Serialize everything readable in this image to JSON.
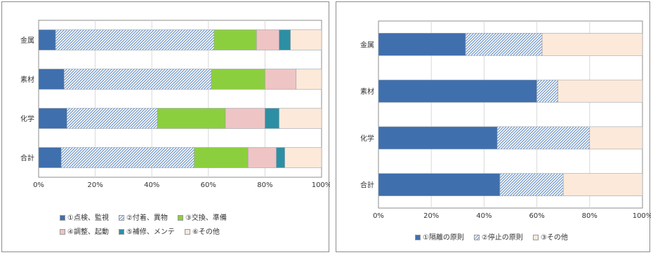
{
  "colors": {
    "blue": "#3f6fad",
    "hatch": "#b7c9e2",
    "green": "#8ccf3e",
    "pink": "#efc4c4",
    "teal": "#2d8fa3",
    "cream": "#fde9d9",
    "grid": "#d9d9d9",
    "plot_border": "#8c8c8c"
  },
  "chart_data": [
    {
      "type": "bar",
      "orientation": "horizontal",
      "stacked": true,
      "categories": [
        "金属",
        "素材",
        "化学",
        "合計"
      ],
      "series": [
        {
          "name": "①点検、監視",
          "color": "blue",
          "values": [
            6,
            9,
            10,
            8
          ]
        },
        {
          "name": "②付着、異物",
          "color": "hatch",
          "values": [
            56,
            52,
            32,
            47
          ]
        },
        {
          "name": "③交換、準備",
          "color": "green",
          "values": [
            15,
            19,
            24,
            19
          ]
        },
        {
          "name": "④調整、起動",
          "color": "pink",
          "values": [
            8,
            11,
            14,
            10
          ]
        },
        {
          "name": "⑤補修、メンテ",
          "color": "teal",
          "values": [
            4,
            0,
            5,
            3
          ]
        },
        {
          "name": "⑥その他",
          "color": "cream",
          "values": [
            11,
            9,
            15,
            13
          ]
        }
      ],
      "xlim": [
        0,
        100
      ],
      "xticks": [
        "0%",
        "20%",
        "40%",
        "60%",
        "80%",
        "100%"
      ],
      "grid": true,
      "legend_position": "bottom"
    },
    {
      "type": "bar",
      "orientation": "horizontal",
      "stacked": true,
      "categories": [
        "金属",
        "素材",
        "化学",
        "合計"
      ],
      "series": [
        {
          "name": "①隔離の原則",
          "color": "blue",
          "values": [
            33,
            60,
            45,
            46
          ]
        },
        {
          "name": "②停止の原則",
          "color": "hatch",
          "values": [
            29,
            8,
            35,
            24
          ]
        },
        {
          "name": "③その他",
          "color": "cream",
          "values": [
            38,
            32,
            20,
            30
          ]
        }
      ],
      "xlim": [
        0,
        100
      ],
      "xticks": [
        "0%",
        "20%",
        "40%",
        "60%",
        "80%",
        "100%"
      ],
      "grid": true,
      "legend_position": "bottom"
    }
  ]
}
